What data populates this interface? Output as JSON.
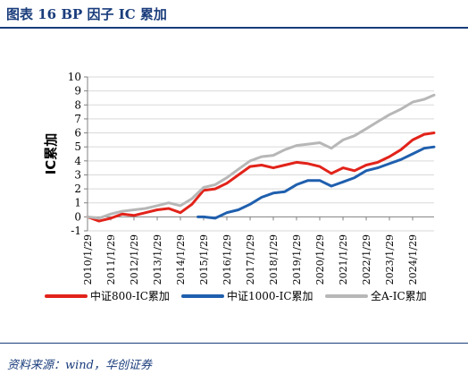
{
  "figure": {
    "title": "图表 16   BP 因子 IC 累加",
    "source": "资料来源：wind，华创证券"
  },
  "colors": {
    "frame": "#1a3d7c",
    "grid": "#d9d9d9",
    "axis": "#808080"
  },
  "chart_data": {
    "type": "line",
    "title": "",
    "ylabel": "IC累加",
    "xlabel": "",
    "ylim": [
      -1,
      10
    ],
    "yticks": [
      -1,
      0,
      1,
      2,
      3,
      4,
      5,
      6,
      7,
      8,
      9,
      10
    ],
    "xticks": [
      "2010/1/29",
      "2011/1/29",
      "2012/1/29",
      "2013/1/29",
      "2014/1/29",
      "2015/1/29",
      "2016/1/29",
      "2017/1/29",
      "2018/1/29",
      "2019/1/29",
      "2020/1/29",
      "2021/1/29",
      "2022/1/29",
      "2023/1/29",
      "2024/1/29"
    ],
    "grid": "horizontal",
    "legend_position": "bottom",
    "series": [
      {
        "name": "中证800-IC累加",
        "color": "#e2231a",
        "x": [
          "2010/1/29",
          "2010/7/29",
          "2011/1/29",
          "2011/7/29",
          "2012/1/29",
          "2012/7/29",
          "2013/1/29",
          "2013/7/29",
          "2014/1/29",
          "2014/7/29",
          "2015/1/29",
          "2015/7/29",
          "2016/1/29",
          "2016/7/29",
          "2017/1/29",
          "2017/7/29",
          "2018/1/29",
          "2018/7/29",
          "2019/1/29",
          "2019/7/29",
          "2020/1/29",
          "2020/7/29",
          "2021/1/29",
          "2021/7/29",
          "2022/1/29",
          "2022/7/29",
          "2023/1/29",
          "2023/7/29",
          "2024/1/29",
          "2024/7/29",
          "2024/12/31"
        ],
        "values": [
          0.0,
          -0.3,
          -0.1,
          0.2,
          0.1,
          0.3,
          0.5,
          0.6,
          0.3,
          0.9,
          1.9,
          2.0,
          2.4,
          3.0,
          3.6,
          3.7,
          3.5,
          3.7,
          3.9,
          3.8,
          3.6,
          3.1,
          3.5,
          3.3,
          3.7,
          3.9,
          4.3,
          4.8,
          5.5,
          5.9,
          6.0
        ]
      },
      {
        "name": "中证1000-IC累加",
        "color": "#1f5fae",
        "x": [
          "2014/10/31",
          "2015/1/29",
          "2015/7/29",
          "2016/1/29",
          "2016/7/29",
          "2017/1/29",
          "2017/7/29",
          "2018/1/29",
          "2018/7/29",
          "2019/1/29",
          "2019/7/29",
          "2020/1/29",
          "2020/7/29",
          "2021/1/29",
          "2021/7/29",
          "2022/1/29",
          "2022/7/29",
          "2023/1/29",
          "2023/7/29",
          "2024/1/29",
          "2024/7/29",
          "2024/12/31"
        ],
        "values": [
          0.0,
          0.0,
          -0.1,
          0.3,
          0.5,
          0.9,
          1.4,
          1.7,
          1.8,
          2.3,
          2.6,
          2.6,
          2.2,
          2.5,
          2.8,
          3.3,
          3.5,
          3.8,
          4.1,
          4.5,
          4.9,
          5.0
        ]
      },
      {
        "name": "全A-IC累加",
        "color": "#b7b7b7",
        "x": [
          "2010/1/29",
          "2010/7/29",
          "2011/1/29",
          "2011/7/29",
          "2012/1/29",
          "2012/7/29",
          "2013/1/29",
          "2013/7/29",
          "2014/1/29",
          "2014/7/29",
          "2015/1/29",
          "2015/7/29",
          "2016/1/29",
          "2016/7/29",
          "2017/1/29",
          "2017/7/29",
          "2018/1/29",
          "2018/7/29",
          "2019/1/29",
          "2019/7/29",
          "2020/1/29",
          "2020/7/29",
          "2021/1/29",
          "2021/7/29",
          "2022/1/29",
          "2022/7/29",
          "2023/1/29",
          "2023/7/29",
          "2024/1/29",
          "2024/7/29",
          "2024/12/31"
        ],
        "values": [
          0.0,
          -0.1,
          0.2,
          0.4,
          0.5,
          0.6,
          0.8,
          1.0,
          0.8,
          1.3,
          2.1,
          2.3,
          2.8,
          3.4,
          4.0,
          4.3,
          4.4,
          4.8,
          5.1,
          5.2,
          5.3,
          4.9,
          5.5,
          5.8,
          6.3,
          6.8,
          7.3,
          7.7,
          8.2,
          8.4,
          8.7
        ]
      }
    ]
  }
}
